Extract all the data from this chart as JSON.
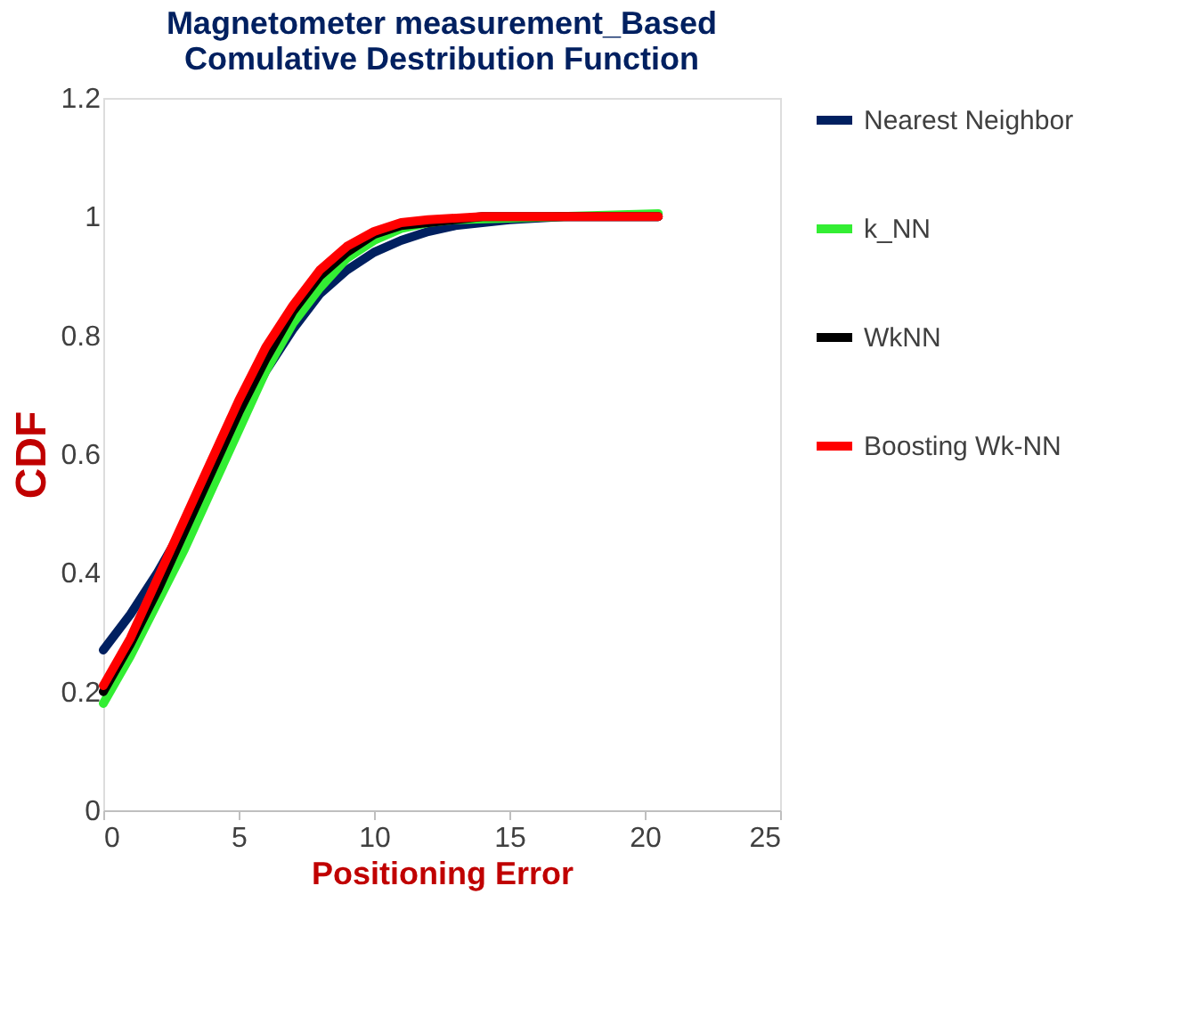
{
  "chart_data": {
    "type": "line",
    "title": [
      "Magnetometer measurement_Based",
      "Comulative Destribution Function"
    ],
    "xlabel": "Positioning Error",
    "ylabel": "CDF",
    "xlim": [
      0,
      25
    ],
    "xticks": [
      0,
      5,
      10,
      15,
      20,
      25
    ],
    "ylim": [
      0,
      1.2
    ],
    "yticks": [
      0,
      0.2,
      0.4,
      0.6,
      0.8,
      1,
      1.2
    ],
    "grid": false,
    "legend": "right",
    "marker": "none",
    "line_style": "solid",
    "series": [
      {
        "name": "Nearest Neighbor",
        "color": "#002060",
        "x": [
          0,
          1,
          2,
          3,
          4,
          5,
          6,
          7,
          8,
          9,
          10,
          11,
          12,
          13,
          14,
          15,
          17,
          20.5
        ],
        "values": [
          0.27,
          0.33,
          0.4,
          0.48,
          0.56,
          0.65,
          0.74,
          0.81,
          0.87,
          0.91,
          0.94,
          0.96,
          0.975,
          0.985,
          0.99,
          0.995,
          1.0,
          1.0
        ]
      },
      {
        "name": "k_NN",
        "color": "#33ee33",
        "x": [
          0,
          1,
          2,
          3,
          4,
          5,
          6,
          7,
          8,
          9,
          10,
          11,
          12,
          13,
          20.5
        ],
        "values": [
          0.18,
          0.26,
          0.35,
          0.44,
          0.54,
          0.64,
          0.74,
          0.82,
          0.88,
          0.93,
          0.96,
          0.98,
          0.99,
          0.995,
          1.005
        ]
      },
      {
        "name": "WkNN",
        "color": "#000000",
        "x": [
          0,
          1,
          2,
          3,
          4,
          5,
          6,
          7,
          8,
          9,
          10,
          11,
          12,
          14,
          20.5
        ],
        "values": [
          0.2,
          0.28,
          0.37,
          0.47,
          0.57,
          0.67,
          0.76,
          0.84,
          0.9,
          0.94,
          0.97,
          0.985,
          0.99,
          1.0,
          1.0
        ]
      },
      {
        "name": "Boosting Wk-NN",
        "color": "#ff0000",
        "x": [
          0,
          1,
          2,
          3,
          4,
          5,
          6,
          7,
          8,
          9,
          10,
          11,
          12,
          14,
          20.5
        ],
        "values": [
          0.21,
          0.29,
          0.39,
          0.49,
          0.59,
          0.69,
          0.78,
          0.85,
          0.91,
          0.95,
          0.975,
          0.99,
          0.995,
          1.0,
          1.0
        ]
      }
    ]
  }
}
